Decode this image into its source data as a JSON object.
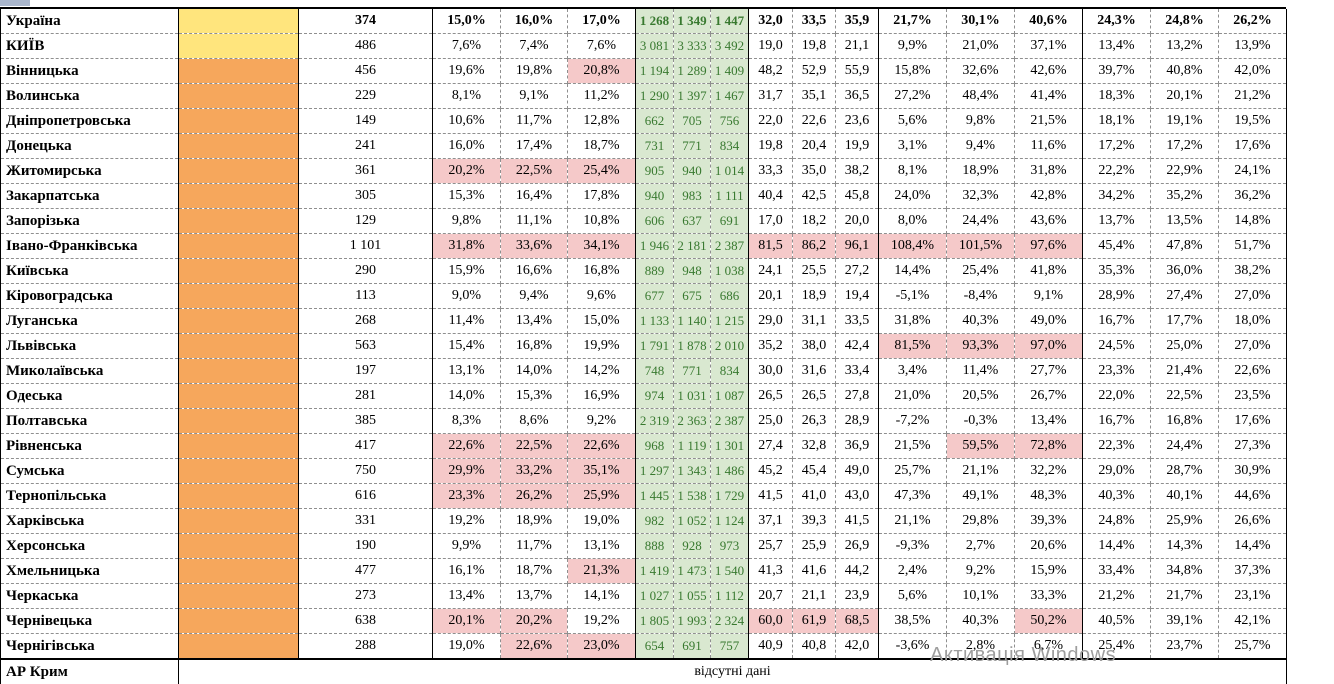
{
  "colors": {
    "yellow": "#ffe57d",
    "orange": "#f6a75c",
    "green_bg": "#d9e8d0",
    "green_text": "#38792f",
    "highlight": "#f5c9c9"
  },
  "watermark": {
    "text": "Активація Windows"
  },
  "table": {
    "rows": [
      {
        "name": "Україна",
        "bold": true,
        "swatch": "yellow",
        "count": "374",
        "pct_a": [
          "15,0%",
          "16,0%",
          "17,0%"
        ],
        "green": [
          "1 268",
          "1 349",
          "1 447"
        ],
        "num": [
          "32,0",
          "33,5",
          "35,9"
        ],
        "pct_b": [
          "21,7%",
          "30,1%",
          "40,6%"
        ],
        "pct_c": [
          "24,3%",
          "24,8%",
          "26,2%"
        ]
      },
      {
        "name": "КИЇВ",
        "swatch": "yellow",
        "count": "486",
        "pct_a": [
          "7,6%",
          "7,4%",
          "7,6%"
        ],
        "green": [
          "3 081",
          "3 333",
          "3 492"
        ],
        "num": [
          "19,0",
          "19,8",
          "21,1"
        ],
        "pct_b": [
          "9,9%",
          "21,0%",
          "37,1%"
        ],
        "pct_c": [
          "13,4%",
          "13,2%",
          "13,9%"
        ]
      },
      {
        "name": "Вінницька",
        "swatch": "orange",
        "count": "456",
        "pct_a": [
          "19,6%",
          "19,8%",
          "20,8%"
        ],
        "hl_a": [
          0,
          0,
          1
        ],
        "green": [
          "1 194",
          "1 289",
          "1 409"
        ],
        "num": [
          "48,2",
          "52,9",
          "55,9"
        ],
        "pct_b": [
          "15,8%",
          "32,6%",
          "42,6%"
        ],
        "pct_c": [
          "39,7%",
          "40,8%",
          "42,0%"
        ]
      },
      {
        "name": "Волинська",
        "swatch": "orange",
        "count": "229",
        "pct_a": [
          "8,1%",
          "9,1%",
          "11,2%"
        ],
        "green": [
          "1 290",
          "1 397",
          "1 467"
        ],
        "num": [
          "31,7",
          "35,1",
          "36,5"
        ],
        "pct_b": [
          "27,2%",
          "48,4%",
          "41,4%"
        ],
        "pct_c": [
          "18,3%",
          "20,1%",
          "21,2%"
        ]
      },
      {
        "name": "Дніпропетровська",
        "swatch": "orange",
        "count": "149",
        "pct_a": [
          "10,6%",
          "11,7%",
          "12,8%"
        ],
        "green": [
          "662",
          "705",
          "756"
        ],
        "num": [
          "22,0",
          "22,6",
          "23,6"
        ],
        "pct_b": [
          "5,6%",
          "9,8%",
          "21,5%"
        ],
        "pct_c": [
          "18,1%",
          "19,1%",
          "19,5%"
        ]
      },
      {
        "name": "Донецька",
        "swatch": "orange",
        "count": "241",
        "pct_a": [
          "16,0%",
          "17,4%",
          "18,7%"
        ],
        "green": [
          "731",
          "771",
          "834"
        ],
        "num": [
          "19,8",
          "20,4",
          "19,9"
        ],
        "pct_b": [
          "3,1%",
          "9,4%",
          "11,6%"
        ],
        "pct_c": [
          "17,2%",
          "17,2%",
          "17,6%"
        ]
      },
      {
        "name": "Житомирська",
        "swatch": "orange",
        "count": "361",
        "pct_a": [
          "20,2%",
          "22,5%",
          "25,4%"
        ],
        "hl_a": [
          1,
          1,
          1
        ],
        "green": [
          "905",
          "940",
          "1 014"
        ],
        "num": [
          "33,3",
          "35,0",
          "38,2"
        ],
        "pct_b": [
          "8,1%",
          "18,9%",
          "31,8%"
        ],
        "pct_c": [
          "22,2%",
          "22,9%",
          "24,1%"
        ]
      },
      {
        "name": "Закарпатська",
        "swatch": "orange",
        "count": "305",
        "pct_a": [
          "15,3%",
          "16,4%",
          "17,8%"
        ],
        "green": [
          "940",
          "983",
          "1 111"
        ],
        "num": [
          "40,4",
          "42,5",
          "45,8"
        ],
        "pct_b": [
          "24,0%",
          "32,3%",
          "42,8%"
        ],
        "pct_c": [
          "34,2%",
          "35,2%",
          "36,2%"
        ]
      },
      {
        "name": "Запорізька",
        "swatch": "orange",
        "count": "129",
        "pct_a": [
          "9,8%",
          "11,1%",
          "10,8%"
        ],
        "green": [
          "606",
          "637",
          "691"
        ],
        "num": [
          "17,0",
          "18,2",
          "20,0"
        ],
        "pct_b": [
          "8,0%",
          "24,4%",
          "43,6%"
        ],
        "pct_c": [
          "13,7%",
          "13,5%",
          "14,8%"
        ]
      },
      {
        "name": "Івано-Франківська",
        "swatch": "orange",
        "count": "1 101",
        "pct_a": [
          "31,8%",
          "33,6%",
          "34,1%"
        ],
        "hl_a": [
          1,
          1,
          1
        ],
        "green": [
          "1 946",
          "2 181",
          "2 387"
        ],
        "num": [
          "81,5",
          "86,2",
          "96,1"
        ],
        "hl_n": [
          1,
          1,
          1
        ],
        "pct_b": [
          "108,4%",
          "101,5%",
          "97,6%"
        ],
        "hl_b": [
          1,
          1,
          1
        ],
        "pct_c": [
          "45,4%",
          "47,8%",
          "51,7%"
        ]
      },
      {
        "name": "Київська",
        "swatch": "orange",
        "count": "290",
        "pct_a": [
          "15,9%",
          "16,6%",
          "16,8%"
        ],
        "green": [
          "889",
          "948",
          "1 038"
        ],
        "num": [
          "24,1",
          "25,5",
          "27,2"
        ],
        "pct_b": [
          "14,4%",
          "25,4%",
          "41,8%"
        ],
        "pct_c": [
          "35,3%",
          "36,0%",
          "38,2%"
        ]
      },
      {
        "name": "Кіровоградська",
        "swatch": "orange",
        "count": "113",
        "pct_a": [
          "9,0%",
          "9,4%",
          "9,6%"
        ],
        "green": [
          "677",
          "675",
          "686"
        ],
        "num": [
          "20,1",
          "18,9",
          "19,4"
        ],
        "pct_b": [
          "-5,1%",
          "-8,4%",
          "9,1%"
        ],
        "pct_c": [
          "28,9%",
          "27,4%",
          "27,0%"
        ]
      },
      {
        "name": "Луганська",
        "swatch": "orange",
        "count": "268",
        "pct_a": [
          "11,4%",
          "13,4%",
          "15,0%"
        ],
        "green": [
          "1 133",
          "1 140",
          "1 215"
        ],
        "num": [
          "29,0",
          "31,1",
          "33,5"
        ],
        "pct_b": [
          "31,8%",
          "40,3%",
          "49,0%"
        ],
        "pct_c": [
          "16,7%",
          "17,7%",
          "18,0%"
        ]
      },
      {
        "name": "Львівська",
        "swatch": "orange",
        "count": "563",
        "pct_a": [
          "15,4%",
          "16,8%",
          "19,9%"
        ],
        "green": [
          "1 791",
          "1 878",
          "2 010"
        ],
        "num": [
          "35,2",
          "38,0",
          "42,4"
        ],
        "pct_b": [
          "81,5%",
          "93,3%",
          "97,0%"
        ],
        "hl_b": [
          1,
          1,
          1
        ],
        "pct_c": [
          "24,5%",
          "25,0%",
          "27,0%"
        ]
      },
      {
        "name": "Миколаївська",
        "swatch": "orange",
        "count": "197",
        "pct_a": [
          "13,1%",
          "14,0%",
          "14,2%"
        ],
        "green": [
          "748",
          "771",
          "834"
        ],
        "num": [
          "30,0",
          "31,6",
          "33,4"
        ],
        "pct_b": [
          "3,4%",
          "11,4%",
          "27,7%"
        ],
        "pct_c": [
          "23,3%",
          "21,4%",
          "22,6%"
        ]
      },
      {
        "name": "Одеська",
        "swatch": "orange",
        "count": "281",
        "pct_a": [
          "14,0%",
          "15,3%",
          "16,9%"
        ],
        "green": [
          "974",
          "1 031",
          "1 087"
        ],
        "num": [
          "26,5",
          "26,5",
          "27,8"
        ],
        "pct_b": [
          "21,0%",
          "20,5%",
          "26,7%"
        ],
        "pct_c": [
          "22,0%",
          "22,5%",
          "23,5%"
        ]
      },
      {
        "name": "Полтавська",
        "swatch": "orange",
        "count": "385",
        "pct_a": [
          "8,3%",
          "8,6%",
          "9,2%"
        ],
        "green": [
          "2 319",
          "2 363",
          "2 387"
        ],
        "num": [
          "25,0",
          "26,3",
          "28,9"
        ],
        "pct_b": [
          "-7,2%",
          "-0,3%",
          "13,4%"
        ],
        "pct_c": [
          "16,7%",
          "16,8%",
          "17,6%"
        ]
      },
      {
        "name": "Рівненська",
        "swatch": "orange",
        "count": "417",
        "pct_a": [
          "22,6%",
          "22,5%",
          "22,6%"
        ],
        "hl_a": [
          1,
          1,
          1
        ],
        "green": [
          "968",
          "1 119",
          "1 301"
        ],
        "num": [
          "27,4",
          "32,8",
          "36,9"
        ],
        "pct_b": [
          "21,5%",
          "59,5%",
          "72,8%"
        ],
        "hl_b": [
          0,
          1,
          1
        ],
        "pct_c": [
          "22,3%",
          "24,4%",
          "27,3%"
        ]
      },
      {
        "name": "Сумська",
        "swatch": "orange",
        "count": "750",
        "pct_a": [
          "29,9%",
          "33,2%",
          "35,1%"
        ],
        "hl_a": [
          1,
          1,
          1
        ],
        "green": [
          "1 297",
          "1 343",
          "1 486"
        ],
        "num": [
          "45,2",
          "45,4",
          "49,0"
        ],
        "pct_b": [
          "25,7%",
          "21,1%",
          "32,2%"
        ],
        "pct_c": [
          "29,0%",
          "28,7%",
          "30,9%"
        ]
      },
      {
        "name": "Тернопільська",
        "swatch": "orange",
        "count": "616",
        "pct_a": [
          "23,3%",
          "26,2%",
          "25,9%"
        ],
        "hl_a": [
          1,
          1,
          1
        ],
        "green": [
          "1 445",
          "1 538",
          "1 729"
        ],
        "num": [
          "41,5",
          "41,0",
          "43,0"
        ],
        "pct_b": [
          "47,3%",
          "49,1%",
          "48,3%"
        ],
        "pct_c": [
          "40,3%",
          "40,1%",
          "44,6%"
        ]
      },
      {
        "name": "Харківська",
        "swatch": "orange",
        "count": "331",
        "pct_a": [
          "19,2%",
          "18,9%",
          "19,0%"
        ],
        "green": [
          "982",
          "1 052",
          "1 124"
        ],
        "num": [
          "37,1",
          "39,3",
          "41,5"
        ],
        "pct_b": [
          "21,1%",
          "29,8%",
          "39,3%"
        ],
        "pct_c": [
          "24,8%",
          "25,9%",
          "26,6%"
        ]
      },
      {
        "name": "Херсонська",
        "swatch": "orange",
        "count": "190",
        "pct_a": [
          "9,9%",
          "11,7%",
          "13,1%"
        ],
        "green": [
          "888",
          "928",
          "973"
        ],
        "num": [
          "25,7",
          "25,9",
          "26,9"
        ],
        "pct_b": [
          "-9,3%",
          "2,7%",
          "20,6%"
        ],
        "pct_c": [
          "14,4%",
          "14,3%",
          "14,4%"
        ]
      },
      {
        "name": "Хмельницька",
        "swatch": "orange",
        "count": "477",
        "pct_a": [
          "16,1%",
          "18,7%",
          "21,3%"
        ],
        "hl_a": [
          0,
          0,
          1
        ],
        "green": [
          "1 419",
          "1 473",
          "1 540"
        ],
        "num": [
          "41,3",
          "41,6",
          "44,2"
        ],
        "pct_b": [
          "2,4%",
          "9,2%",
          "15,9%"
        ],
        "pct_c": [
          "33,4%",
          "34,8%",
          "37,3%"
        ]
      },
      {
        "name": "Черкаська",
        "swatch": "orange",
        "count": "273",
        "pct_a": [
          "13,4%",
          "13,7%",
          "14,1%"
        ],
        "green": [
          "1 027",
          "1 055",
          "1 112"
        ],
        "num": [
          "20,7",
          "21,1",
          "23,9"
        ],
        "pct_b": [
          "5,6%",
          "10,1%",
          "33,3%"
        ],
        "pct_c": [
          "21,2%",
          "21,7%",
          "23,1%"
        ]
      },
      {
        "name": "Чернівецька",
        "swatch": "orange",
        "count": "638",
        "pct_a": [
          "20,1%",
          "20,2%",
          "19,2%"
        ],
        "hl_a": [
          1,
          1,
          0
        ],
        "green": [
          "1 805",
          "1 993",
          "2 324"
        ],
        "num": [
          "60,0",
          "61,9",
          "68,5"
        ],
        "hl_n": [
          1,
          1,
          1
        ],
        "pct_b": [
          "38,5%",
          "40,3%",
          "50,2%"
        ],
        "hl_b": [
          0,
          0,
          1
        ],
        "pct_c": [
          "40,5%",
          "39,1%",
          "42,1%"
        ]
      },
      {
        "name": "Чернігівська",
        "swatch": "orange",
        "count": "288",
        "pct_a": [
          "19,0%",
          "22,6%",
          "23,0%"
        ],
        "hl_a": [
          0,
          1,
          1
        ],
        "green": [
          "654",
          "691",
          "757"
        ],
        "num": [
          "40,9",
          "40,8",
          "42,0"
        ],
        "pct_b": [
          "-3,6%",
          "2,8%",
          "6,7%"
        ],
        "pct_c": [
          "25,4%",
          "23,7%",
          "25,7%"
        ]
      },
      {
        "name": "АР Крим",
        "merged": "відсутні дані"
      }
    ]
  }
}
